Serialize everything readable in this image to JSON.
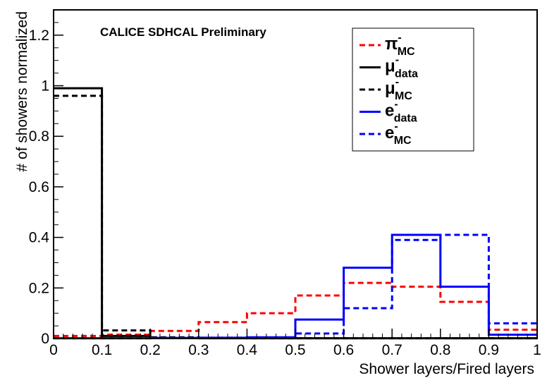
{
  "chart_data": {
    "type": "histogram",
    "xlabel": "Shower layers/Fired layers",
    "ylabel": "# of showers normalized",
    "xlim": [
      0,
      1
    ],
    "ylim": [
      0,
      1.3
    ],
    "x_ticks": [
      0,
      0.1,
      0.2,
      0.3,
      0.4,
      0.5,
      0.6,
      0.7,
      0.8,
      0.9,
      1
    ],
    "x_tick_labels": [
      "0",
      "0.1",
      "0.2",
      "0.3",
      "0.4",
      "0.5",
      "0.6",
      "0.7",
      "0.8",
      "0.9",
      "1"
    ],
    "y_ticks": [
      0,
      0.2,
      0.4,
      0.6,
      0.8,
      1,
      1.2
    ],
    "y_tick_labels": [
      "0",
      "0.2",
      "0.4",
      "0.6",
      "0.8",
      "1",
      "1.2"
    ],
    "annotation": "CALICE SDHCAL Preliminary",
    "bin_edges": [
      0,
      0.1,
      0.2,
      0.3,
      0.4,
      0.5,
      0.6,
      0.7,
      0.8,
      0.9,
      1.0
    ],
    "legend_position": "top-right",
    "series": [
      {
        "name": "π",
        "sup": "-",
        "sub": "MC",
        "color": "#ff0000",
        "dashed": true,
        "values": [
          0.01,
          0.015,
          0.03,
          0.065,
          0.1,
          0.17,
          0.22,
          0.205,
          0.145,
          0.035
        ]
      },
      {
        "name": "μ",
        "sup": "-",
        "sub": "data",
        "color": "#000000",
        "dashed": false,
        "values": [
          0.99,
          0.01,
          0.002,
          0.001,
          0.001,
          0.001,
          0.001,
          0.001,
          0.001,
          0.001
        ]
      },
      {
        "name": "μ",
        "sup": "-",
        "sub": "MC",
        "color": "#000000",
        "dashed": true,
        "values": [
          0.96,
          0.032,
          0.005,
          0.002,
          0.001,
          0.001,
          0.001,
          0.001,
          0.001,
          0.001
        ]
      },
      {
        "name": "e",
        "sup": "-",
        "sub": "data",
        "color": "#0000ff",
        "dashed": false,
        "values": [
          0.001,
          0.001,
          0.002,
          0.003,
          0.005,
          0.075,
          0.28,
          0.41,
          0.205,
          0.015
        ]
      },
      {
        "name": "e",
        "sup": "-",
        "sub": "MC",
        "color": "#0000ff",
        "dashed": true,
        "values": [
          0.001,
          0.001,
          0.002,
          0.003,
          0.004,
          0.02,
          0.12,
          0.39,
          0.41,
          0.06
        ]
      }
    ]
  }
}
